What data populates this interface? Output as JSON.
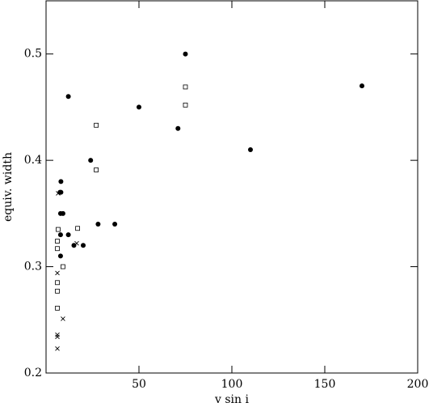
{
  "chart_data": {
    "type": "scatter",
    "x_label": "v sin i",
    "y_label": "equiv. width",
    "xlim": [
      0,
      200
    ],
    "ylim": [
      0.2,
      0.55
    ],
    "xticks": [
      50,
      100,
      150,
      200
    ],
    "yticks": [
      0.2,
      0.3,
      0.4,
      0.5
    ],
    "series": [
      {
        "color": "#000000",
        "marker": "dot",
        "x": [
          75,
          170,
          12,
          50,
          71,
          110,
          24,
          8,
          8,
          7.5,
          7.8,
          9.1,
          28,
          37,
          7.8,
          12,
          15,
          20,
          7.8
        ],
        "values": [
          0.5,
          0.47,
          0.46,
          0.45,
          0.43,
          0.41,
          0.4,
          0.38,
          0.37,
          0.37,
          0.35,
          0.35,
          0.34,
          0.34,
          0.33,
          0.33,
          0.32,
          0.32,
          0.31
        ]
      },
      {
        "color": "#000000",
        "marker": "square",
        "x": [
          75,
          75,
          27,
          27,
          6.5,
          17,
          6.1,
          6.1,
          9.1,
          6.1,
          6.1,
          6.1
        ],
        "values": [
          0.469,
          0.452,
          0.433,
          0.391,
          0.335,
          0.336,
          0.324,
          0.317,
          0.3,
          0.285,
          0.277,
          0.261
        ]
      },
      {
        "color": "#000000",
        "marker": "cross",
        "x": [
          6.5,
          16.5,
          6.1,
          9.1,
          6.1,
          6.1,
          6.1
        ],
        "values": [
          0.369,
          0.322,
          0.294,
          0.251,
          0.236,
          0.234,
          0.223
        ]
      }
    ]
  }
}
